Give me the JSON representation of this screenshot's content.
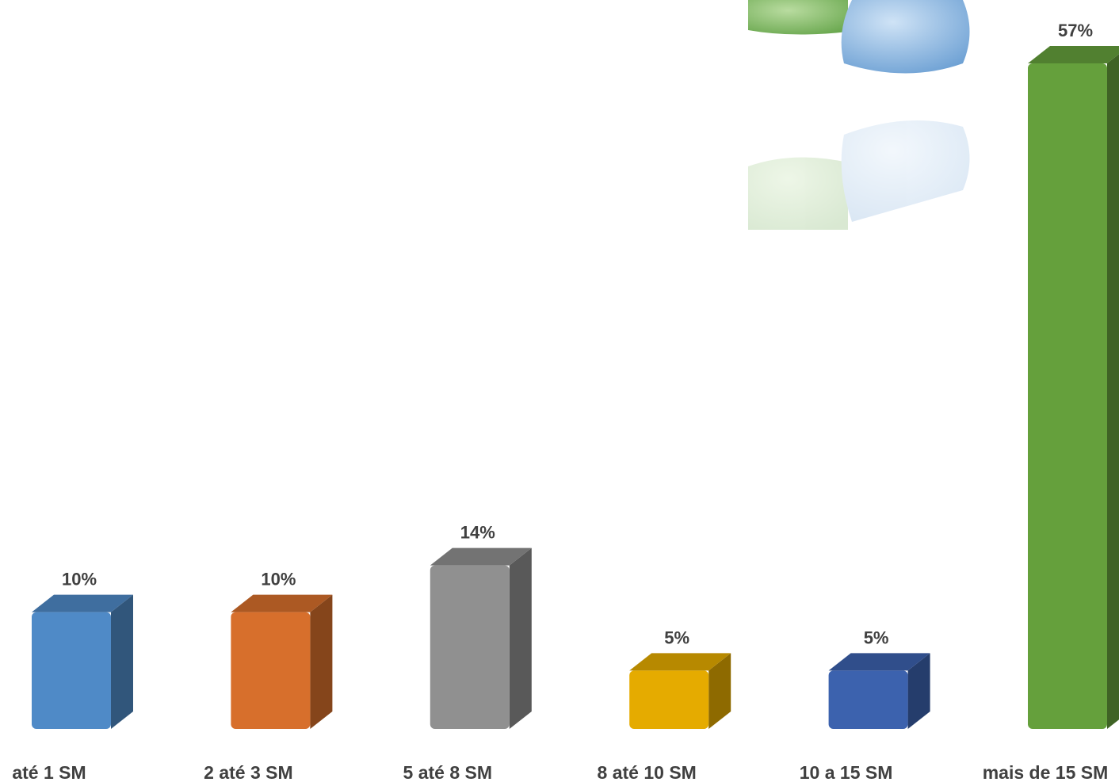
{
  "chart_data": {
    "type": "bar3d",
    "categories": [
      "até 1 SM",
      "2 até 3 SM",
      "5 até 8 SM",
      "8 até 10 SM",
      "10 a 15 SM",
      "mais de 15 SM"
    ],
    "values": [
      10,
      10,
      14,
      5,
      5,
      57
    ],
    "value_labels": [
      "10%",
      "10%",
      "14%",
      "5%",
      "5%",
      "57%"
    ],
    "colors": [
      "#4f8ac7",
      "#d76f2c",
      "#909090",
      "#e5ab00",
      "#3c62ae",
      "#65a03c"
    ]
  }
}
